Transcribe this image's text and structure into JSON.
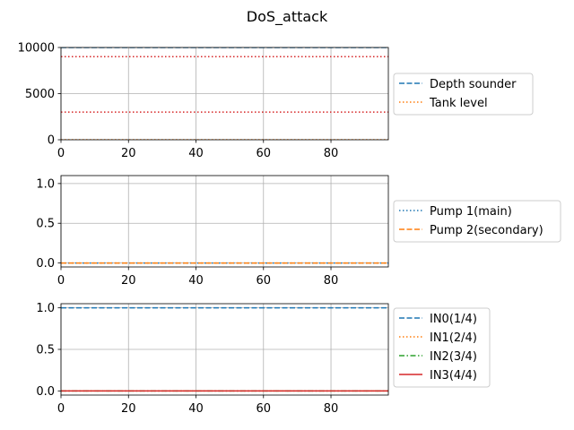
{
  "chart_data": {
    "title": "DoS_attack",
    "panels": [
      {
        "type": "line",
        "xlim": [
          0,
          97
        ],
        "ylim": [
          0,
          10000
        ],
        "xticks": [
          0,
          20,
          40,
          60,
          80
        ],
        "yticks": [
          0,
          5000,
          10000
        ],
        "grid": true,
        "legend_placement": "right",
        "series": [
          {
            "name": "Depth sounder",
            "color": "#1f77b4",
            "dash": "dashed",
            "x": [
              0,
              97
            ],
            "y": [
              10000,
              10000
            ]
          },
          {
            "name": "Tank level",
            "color": "#ff7f0e",
            "dash": "dotted",
            "x": [
              0,
              97
            ],
            "y": [
              0,
              0
            ]
          }
        ],
        "reference_lines": [
          {
            "y": 9000,
            "color": "#d62728",
            "dash": "dotted"
          },
          {
            "y": 3000,
            "color": "#d62728",
            "dash": "dotted"
          }
        ]
      },
      {
        "type": "line",
        "xlim": [
          0,
          97
        ],
        "ylim": [
          -0.05,
          1.1
        ],
        "xticks": [
          0,
          20,
          40,
          60,
          80
        ],
        "yticks": [
          0.0,
          0.5,
          1.0
        ],
        "grid": true,
        "legend_placement": "right",
        "series": [
          {
            "name": "Pump 1(main)",
            "color": "#1f77b4",
            "dash": "dotted",
            "x": [
              0,
              97
            ],
            "y": [
              0,
              0
            ]
          },
          {
            "name": "Pump 2(secondary)",
            "color": "#ff7f0e",
            "dash": "dashed",
            "x": [
              0,
              97
            ],
            "y": [
              0,
              0
            ]
          }
        ]
      },
      {
        "type": "line",
        "xlim": [
          0,
          97
        ],
        "ylim": [
          -0.05,
          1.05
        ],
        "xticks": [
          0,
          20,
          40,
          60,
          80
        ],
        "yticks": [
          0.0,
          0.5,
          1.0
        ],
        "grid": true,
        "legend_placement": "right",
        "series": [
          {
            "name": "IN0(1/4)",
            "color": "#1f77b4",
            "dash": "dashed",
            "x": [
              0,
              97
            ],
            "y": [
              1,
              1
            ]
          },
          {
            "name": "IN1(2/4)",
            "color": "#ff7f0e",
            "dash": "dotted",
            "x": [
              0,
              97
            ],
            "y": [
              0,
              0
            ]
          },
          {
            "name": "IN2(3/4)",
            "color": "#2ca02c",
            "dash": "dashdot",
            "x": [
              0,
              97
            ],
            "y": [
              0,
              0
            ]
          },
          {
            "name": "IN3(4/4)",
            "color": "#d62728",
            "dash": "solid",
            "x": [
              0,
              97
            ],
            "y": [
              0,
              0
            ]
          }
        ]
      }
    ]
  }
}
